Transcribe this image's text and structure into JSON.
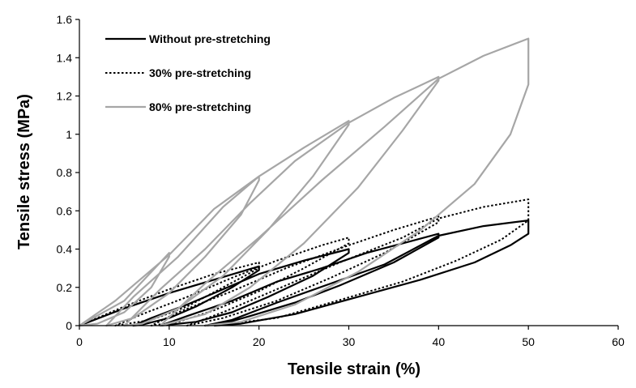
{
  "chart_data": {
    "type": "line",
    "xlabel": "Tensile strain (%)",
    "ylabel": "Tensile stress (MPa)",
    "xlim": [
      0,
      60
    ],
    "ylim": [
      0,
      1.6
    ],
    "x_ticks": [
      0,
      10,
      20,
      30,
      40,
      50,
      60
    ],
    "y_ticks": [
      0,
      0.2,
      0.4,
      0.6,
      0.8,
      1,
      1.2,
      1.4,
      1.6
    ],
    "y_tick_labels": [
      "0",
      "0.2",
      "0.4",
      "0.6",
      "0.8",
      "1",
      "1.2",
      "1.4",
      "1.6"
    ],
    "grid": false,
    "legend_position": "top-left",
    "series": [
      {
        "name": "Without pre-stretching",
        "color": "#000000",
        "dash": "solid",
        "points": [
          [
            0,
            0
          ],
          [
            5,
            0.09
          ],
          [
            10,
            0.17
          ],
          [
            15,
            0.24
          ],
          [
            20,
            0.31
          ],
          [
            20,
            0.29
          ],
          [
            17,
            0.2
          ],
          [
            13,
            0.1
          ],
          [
            10,
            0.04
          ],
          [
            7,
            0.005
          ],
          [
            6,
            0
          ],
          [
            8,
            0.04
          ],
          [
            12,
            0.11
          ],
          [
            16,
            0.19
          ],
          [
            20,
            0.27
          ],
          [
            25,
            0.34
          ],
          [
            30,
            0.4
          ],
          [
            30,
            0.38
          ],
          [
            26,
            0.26
          ],
          [
            21,
            0.15
          ],
          [
            17,
            0.07
          ],
          [
            13,
            0.02
          ],
          [
            9,
            0
          ],
          [
            12,
            0.05
          ],
          [
            17,
            0.13
          ],
          [
            22,
            0.23
          ],
          [
            27,
            0.3
          ],
          [
            32,
            0.38
          ],
          [
            40,
            0.48
          ],
          [
            40,
            0.46
          ],
          [
            35,
            0.33
          ],
          [
            29,
            0.21
          ],
          [
            24,
            0.12
          ],
          [
            19,
            0.05
          ],
          [
            16,
            0.01
          ],
          [
            14,
            0
          ],
          [
            17,
            0.03
          ],
          [
            22,
            0.12
          ],
          [
            28,
            0.22
          ],
          [
            34,
            0.32
          ],
          [
            40,
            0.47
          ],
          [
            45,
            0.52
          ],
          [
            50,
            0.55
          ],
          [
            50,
            0.48
          ],
          [
            48,
            0.42
          ],
          [
            44,
            0.33
          ],
          [
            38,
            0.24
          ],
          [
            31,
            0.15
          ],
          [
            24,
            0.06
          ],
          [
            18,
            0.01
          ],
          [
            15,
            0
          ]
        ]
      },
      {
        "name": "30% pre-stretching",
        "color": "#000000",
        "dash": "dotted",
        "points": [
          [
            0,
            0
          ],
          [
            5,
            0.1
          ],
          [
            10,
            0.19
          ],
          [
            15,
            0.27
          ],
          [
            20,
            0.33
          ],
          [
            20,
            0.3
          ],
          [
            16,
            0.2
          ],
          [
            12,
            0.1
          ],
          [
            8,
            0.03
          ],
          [
            4,
            0
          ],
          [
            7,
            0.06
          ],
          [
            12,
            0.15
          ],
          [
            17,
            0.25
          ],
          [
            22,
            0.34
          ],
          [
            27,
            0.42
          ],
          [
            30,
            0.46
          ],
          [
            30,
            0.43
          ],
          [
            25,
            0.3
          ],
          [
            20,
            0.18
          ],
          [
            15,
            0.08
          ],
          [
            11,
            0.02
          ],
          [
            8,
            0
          ],
          [
            11,
            0.07
          ],
          [
            17,
            0.18
          ],
          [
            23,
            0.3
          ],
          [
            30,
            0.42
          ],
          [
            35,
            0.5
          ],
          [
            40,
            0.57
          ],
          [
            40,
            0.54
          ],
          [
            34,
            0.38
          ],
          [
            28,
            0.25
          ],
          [
            22,
            0.13
          ],
          [
            16,
            0.04
          ],
          [
            12,
            0
          ],
          [
            16,
            0.07
          ],
          [
            22,
            0.19
          ],
          [
            29,
            0.33
          ],
          [
            36,
            0.46
          ],
          [
            40,
            0.56
          ],
          [
            45,
            0.62
          ],
          [
            50,
            0.66
          ],
          [
            50,
            0.55
          ],
          [
            47,
            0.45
          ],
          [
            42,
            0.34
          ],
          [
            36,
            0.23
          ],
          [
            28,
            0.12
          ],
          [
            22,
            0.04
          ],
          [
            15,
            0
          ]
        ]
      },
      {
        "name": "80% pre-stretching",
        "color": "#a6a6a6",
        "dash": "solid",
        "points": [
          [
            0,
            0
          ],
          [
            5,
            0.13
          ],
          [
            10,
            0.38
          ],
          [
            10,
            0.36
          ],
          [
            8,
            0.2
          ],
          [
            5,
            0.07
          ],
          [
            2,
            0.01
          ],
          [
            0,
            0
          ],
          [
            4,
            0.13
          ],
          [
            10,
            0.37
          ],
          [
            15,
            0.61
          ],
          [
            20,
            0.78
          ],
          [
            20,
            0.76
          ],
          [
            18,
            0.58
          ],
          [
            14,
            0.36
          ],
          [
            10,
            0.17
          ],
          [
            6,
            0.04
          ],
          [
            3,
            0
          ],
          [
            6,
            0.15
          ],
          [
            11,
            0.36
          ],
          [
            16,
            0.62
          ],
          [
            20,
            0.78
          ],
          [
            25,
            0.93
          ],
          [
            30,
            1.07
          ],
          [
            30,
            1.05
          ],
          [
            26,
            0.78
          ],
          [
            21,
            0.5
          ],
          [
            16,
            0.26
          ],
          [
            11,
            0.09
          ],
          [
            7,
            0.01
          ],
          [
            5,
            0
          ],
          [
            9,
            0.19
          ],
          [
            14,
            0.4
          ],
          [
            19,
            0.64
          ],
          [
            24,
            0.86
          ],
          [
            30,
            1.06
          ],
          [
            35,
            1.19
          ],
          [
            40,
            1.3
          ],
          [
            40,
            1.28
          ],
          [
            36,
            1.02
          ],
          [
            31,
            0.72
          ],
          [
            25,
            0.43
          ],
          [
            19,
            0.2
          ],
          [
            14,
            0.06
          ],
          [
            9,
            0
          ],
          [
            14,
            0.22
          ],
          [
            20,
            0.46
          ],
          [
            27,
            0.76
          ],
          [
            34,
            1.04
          ],
          [
            40,
            1.29
          ],
          [
            45,
            1.41
          ],
          [
            50,
            1.5
          ],
          [
            50,
            1.26
          ],
          [
            48,
            1.0
          ],
          [
            44,
            0.74
          ],
          [
            38,
            0.5
          ],
          [
            31,
            0.28
          ],
          [
            24,
            0.11
          ],
          [
            18,
            0.02
          ],
          [
            14,
            0
          ]
        ]
      }
    ]
  }
}
